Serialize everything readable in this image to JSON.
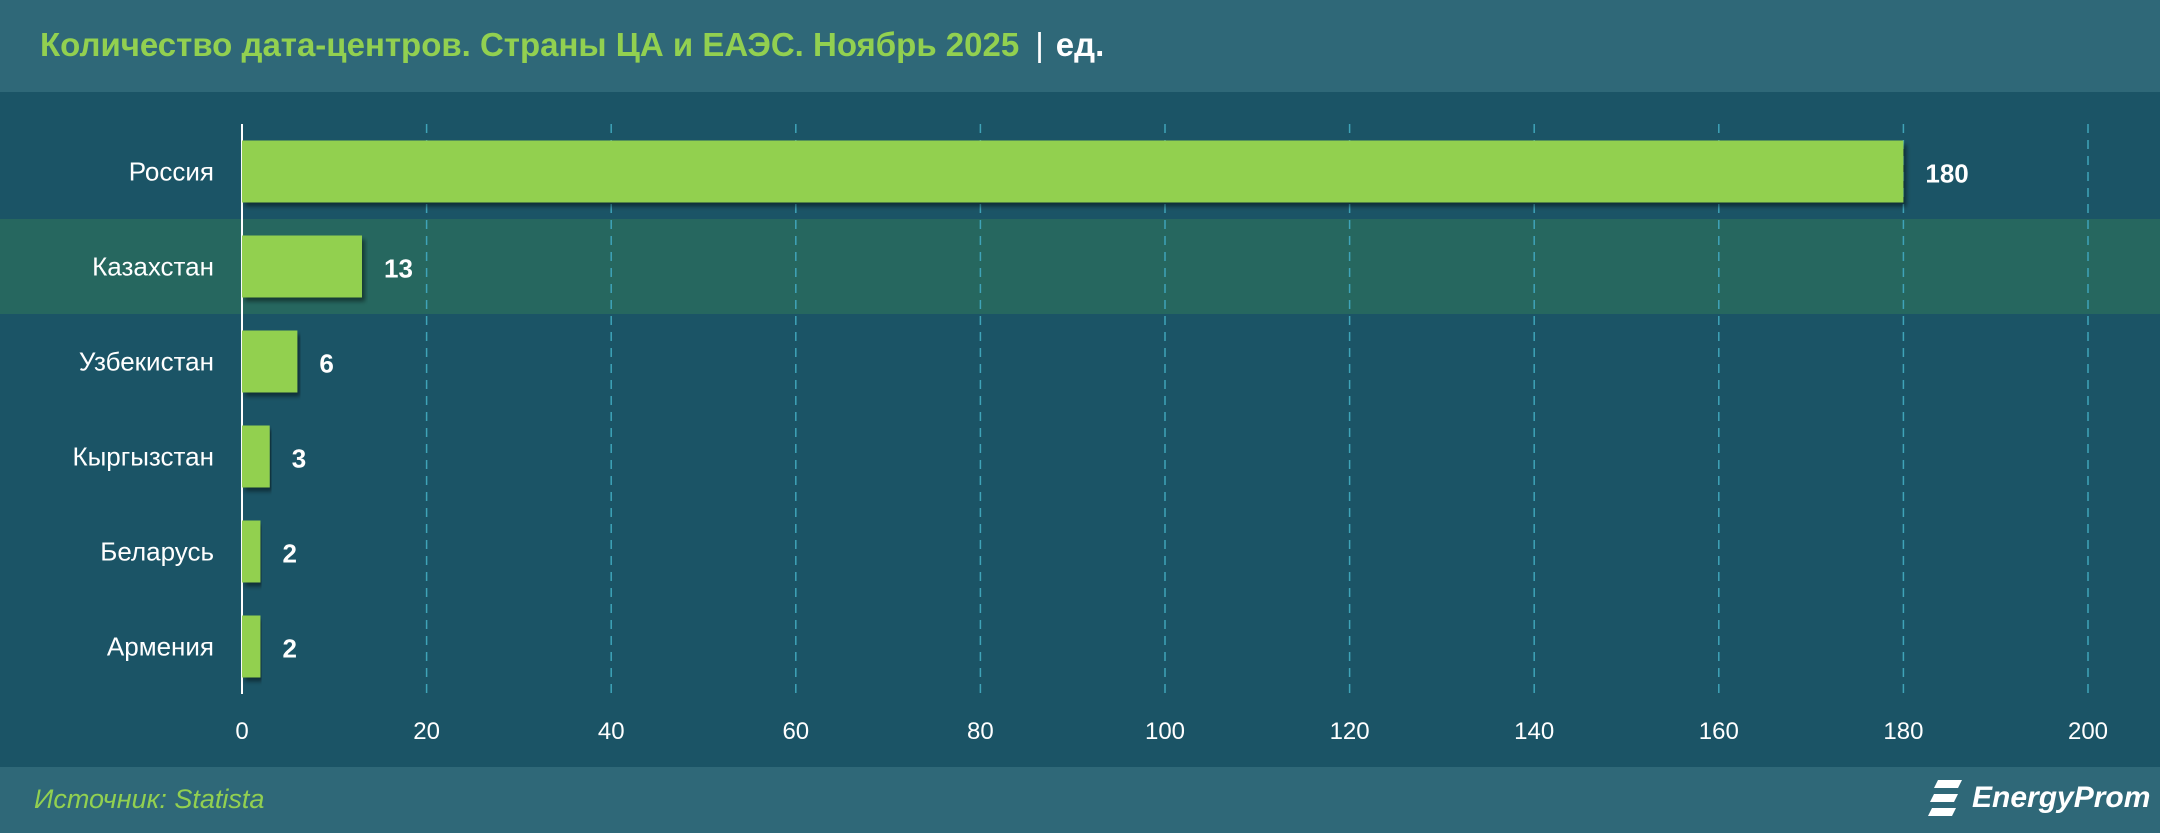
{
  "header": {
    "title": "Количество дата-центров. Страны ЦА и ЕАЭС. Ноябрь 2025",
    "separator": "|",
    "unit": "ед."
  },
  "footer": {
    "source": "Источник: Statista",
    "logo_text": "EnergyProm"
  },
  "colors": {
    "bar": "#92d050",
    "title": "#92d050",
    "plot_bg": "#1b5466",
    "highlight_row": "#26675f",
    "grid": "#3fa3b8"
  },
  "chart_data": {
    "type": "bar",
    "orientation": "horizontal",
    "title": "Количество дата-центров. Страны ЦА и ЕАЭС. Ноябрь 2025",
    "unit": "ед.",
    "categories": [
      "Россия",
      "Казахстан",
      "Узбекистан",
      "Кыргызстан",
      "Беларусь",
      "Армения"
    ],
    "values": [
      180,
      13,
      6,
      3,
      2,
      2
    ],
    "value_labels": [
      "180",
      "13",
      "6",
      "3",
      "2",
      "2"
    ],
    "highlighted_category": "Казахстан",
    "xlim": [
      0,
      200
    ],
    "xticks": [
      0,
      20,
      40,
      60,
      80,
      100,
      120,
      140,
      160,
      180,
      200
    ],
    "grid": "vertical dashed",
    "xlabel": "",
    "ylabel": ""
  }
}
